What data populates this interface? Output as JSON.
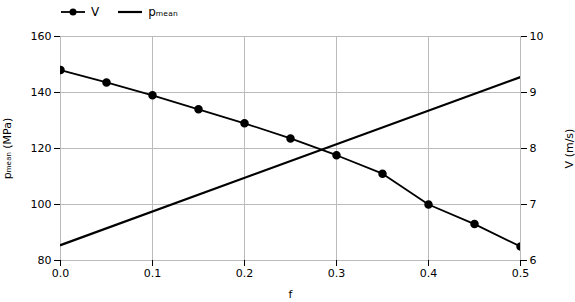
{
  "chart_data": {
    "type": "line",
    "xlabel": "f",
    "ylabel": "pₘₑₐₙ (MPa)",
    "y2label": "V (m/s)",
    "series": [
      {
        "name": "V",
        "color": "#000000",
        "axis": "y2",
        "marker": "circle",
        "x": [
          0,
          0.05,
          0.1,
          0.15,
          0.2,
          0.25,
          0.3,
          0.35,
          0.4,
          0.45,
          0.5
        ],
        "values": [
          9.4,
          9.18,
          8.95,
          8.7,
          8.45,
          8.18,
          7.88,
          7.55,
          7.0,
          6.65,
          6.25
        ]
      },
      {
        "name": "pₘₑₐₙ",
        "color": "#000000",
        "x": [
          0,
          0.5
        ],
        "values": [
          85.5,
          145.5
        ]
      }
    ],
    "xlim": [
      0,
      0.5
    ],
    "xticks": [
      {
        "value": 0,
        "label": "0.0"
      },
      0.1,
      0.2,
      0.3,
      0.4,
      0.5
    ],
    "ylim": [
      80,
      160
    ],
    "yticks": [
      80,
      100,
      120,
      140,
      160
    ],
    "y2lim": [
      6,
      10
    ],
    "y2ticks": [
      6,
      7,
      8,
      9,
      10
    ],
    "grid": true,
    "legend": "top"
  }
}
